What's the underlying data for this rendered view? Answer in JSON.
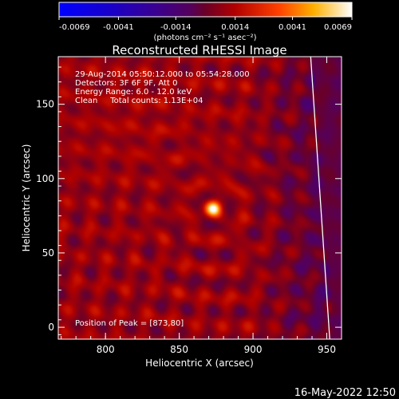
{
  "chart_data": {
    "type": "heatmap",
    "title": "Reconstructed RHESSI Image",
    "xlabel": "Heliocentric X (arcsec)",
    "ylabel": "Heliocentric Y (arcsec)",
    "xlim": [
      768,
      960
    ],
    "ylim": [
      -8,
      182
    ],
    "x_ticks": [
      800,
      850,
      900,
      950
    ],
    "y_ticks": [
      0,
      50,
      100,
      150
    ],
    "grid": false,
    "colorbar": {
      "colormap": "blue-purple-red-yellow-white",
      "range": [
        -0.0069,
        0.0069
      ],
      "tick_labels": [
        "-0.0069",
        "-0.0041",
        "-0.0014",
        "0.0014",
        "0.0041",
        "0.0069"
      ],
      "units_label": "(photons cm⁻² s⁻¹ asec⁻²)"
    },
    "info_lines": [
      "29-Aug-2014 05:50:12.000 to 05:54:28.000",
      "Detectors: 3F 6F 9F, Att 0",
      "Energy Range: 6.0 - 12.0 keV",
      "Clean     Total counts: 1.13E+04"
    ],
    "peak_label": "Position of Peak = [873,80]",
    "peak": {
      "x": 873,
      "y": 80,
      "value": 0.0069
    },
    "limb": {
      "x_at_top": 938,
      "x_at_bottom": 952
    },
    "timestamp": "16-May-2022 12:50"
  }
}
